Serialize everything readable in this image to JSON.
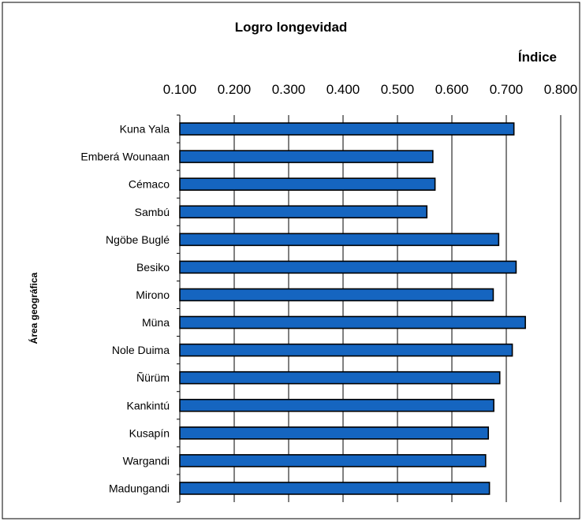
{
  "chart_data": {
    "type": "bar",
    "orientation": "horizontal",
    "title": "Logro longevidad",
    "xlabel": "Índice",
    "ylabel": "Área geográfica",
    "xlim": [
      0.1,
      0.8
    ],
    "x_ticks": [
      "0.100",
      "0.200",
      "0.300",
      "0.400",
      "0.500",
      "0.600",
      "0.700",
      "0.800"
    ],
    "categories": [
      "Kuna Yala",
      "Emberá Wounaan",
      "Cémaco",
      "Sambú",
      "Ngöbe Buglé",
      "Besiko",
      "Mirono",
      "Müna",
      "Nole Duima",
      "Ñürüm",
      "Kankintú",
      "Kusapín",
      "Wargandi",
      "Madungandi"
    ],
    "values": [
      0.714,
      0.565,
      0.569,
      0.554,
      0.686,
      0.718,
      0.676,
      0.735,
      0.711,
      0.688,
      0.677,
      0.667,
      0.662,
      0.669
    ],
    "bar_color": "#1565C0",
    "grid": "vertical",
    "axis_position": "top"
  }
}
